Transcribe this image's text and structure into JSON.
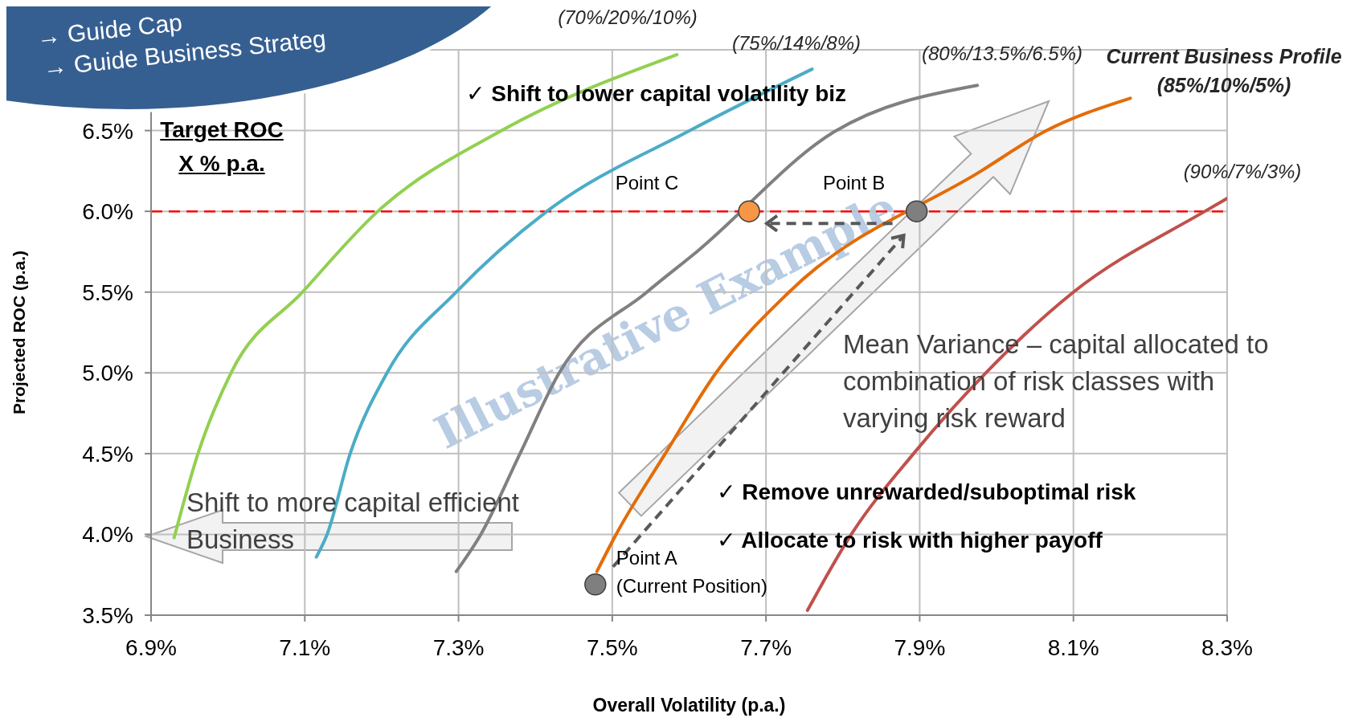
{
  "chart_data": {
    "type": "line",
    "xlabel": "Overall Volatility (p.a.)",
    "ylabel": "Projected ROC (p.a.)",
    "xlim": [
      6.9,
      8.3
    ],
    "xticks": [
      {
        "value": 6.9,
        "label": "6.9%"
      },
      {
        "value": 7.1,
        "label": "7.1%"
      },
      {
        "value": 7.3,
        "label": "7.3%"
      },
      {
        "value": 7.5,
        "label": "7.5%"
      },
      {
        "value": 7.7,
        "label": "7.7%"
      },
      {
        "value": 7.9,
        "label": "7.9%"
      },
      {
        "value": 8.1,
        "label": "8.1%"
      },
      {
        "value": 8.3,
        "label": "8.3%"
      }
    ],
    "ylim": [
      3.5,
      7.0
    ],
    "yticks": [
      {
        "value": 3.5,
        "label": "3.5%"
      },
      {
        "value": 4.0,
        "label": "4.0%"
      },
      {
        "value": 4.5,
        "label": "4.5%"
      },
      {
        "value": 5.0,
        "label": "5.0%"
      },
      {
        "value": 5.5,
        "label": "5.5%"
      },
      {
        "value": 6.0,
        "label": "6.0%"
      },
      {
        "value": 6.5,
        "label": "6.5%"
      },
      {
        "value": 7.0,
        "label": null
      }
    ],
    "grid": true,
    "legend": false,
    "series": [
      {
        "name": "(70%/20%/10%)",
        "color": "#92d050",
        "x": [
          6.93,
          6.961,
          7.004,
          7.097,
          7.195,
          7.356,
          7.584
        ],
        "values": [
          3.98,
          4.5,
          5.0,
          5.5,
          6.0,
          6.5,
          6.97
        ]
      },
      {
        "name": "(75%/14%/8%)",
        "color": "#4bacc6",
        "x": [
          7.115,
          7.129,
          7.159,
          7.207,
          7.297,
          7.415,
          7.601,
          7.76
        ],
        "values": [
          3.86,
          4.0,
          4.5,
          5.0,
          5.5,
          6.0,
          6.5,
          6.88
        ]
      },
      {
        "name": "(80%/13.5%/6.5%)",
        "color": "#808080",
        "x": [
          7.297,
          7.329,
          7.38,
          7.431,
          7.545,
          7.61,
          7.788,
          7.975
        ],
        "values": [
          3.77,
          4.0,
          4.5,
          5.0,
          5.5,
          5.75,
          6.49,
          6.78
        ]
      },
      {
        "name": "Current Business Profile (85%/10%/5%)",
        "color": "#e36c09",
        "x": [
          7.48,
          7.505,
          7.569,
          7.635,
          7.73,
          7.98,
          8.065,
          8.174
        ],
        "values": [
          3.77,
          4.0,
          4.5,
          5.0,
          5.5,
          6.25,
          6.5,
          6.7
        ]
      },
      {
        "name": "(90%/7%/3%)",
        "color": "#c0504d",
        "x": [
          7.754,
          7.811,
          7.892,
          7.986,
          8.1,
          8.271,
          8.3
        ],
        "values": [
          3.53,
          4.0,
          4.5,
          5.0,
          5.5,
          6.0,
          6.08
        ]
      },
      {
        "type": "scatter",
        "x": [
          7.478,
          7.678,
          7.896
        ],
        "values": [
          3.69,
          6.0,
          6.0
        ],
        "colors": [
          "#7f7f7f",
          "#f79646",
          "#7f7f7f"
        ]
      }
    ],
    "ref_lines": [
      {
        "axis": "y",
        "value": 6.0,
        "label": null,
        "color": "#ff0000",
        "line_style": "dashed"
      }
    ],
    "annotations": [
      "→ Guide Cap",
      "→ Guide Business Strateg",
      "Target ROC\nX % p.a.",
      "✓ Shift to lower capital volatility biz",
      "Point C",
      "Point B",
      "Point A\n(Current Position)",
      "Mean Variance – capital allocated to combination of risk classes with varying risk reward",
      "✓ Remove unrewarded/suboptimal risk",
      "✓ Allocate to risk with higher payoff",
      "Shift to more capital efficient Business",
      "Illustrative Example"
    ]
  }
}
